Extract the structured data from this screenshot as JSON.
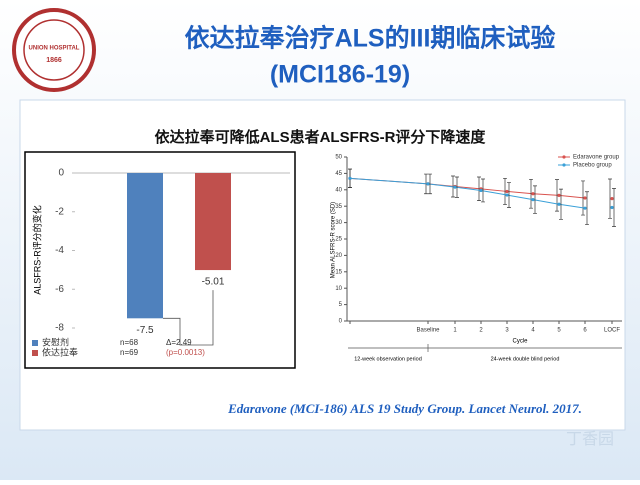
{
  "header": {
    "title": "依达拉奉治疗ALS的III期临床试验",
    "subtitle": "(MCI186-19)",
    "logo_text": "UNION HOSPITAL",
    "logo_year": "1866"
  },
  "panel_title": "依达拉奉可降低ALS患者ALSFRS-R评分下降速度",
  "citation": "Edaravone (MCI-186) ALS 19 Study Group. Lancet Neurol. 2017.",
  "watermark": "丁香园",
  "chart_data": [
    {
      "type": "bar",
      "y_label": "ALSFRS-R评分的变化",
      "categories": [
        "安慰剂",
        "依达拉奉"
      ],
      "values": [
        -7.5,
        -5.01
      ],
      "colors": [
        "#4f81bd",
        "#c0504d"
      ],
      "sample_sizes": [
        "n=68",
        "n=69"
      ],
      "annotations": [
        "Δ=2.49",
        "(p=0.0013)"
      ],
      "ylim": [
        -8,
        0
      ],
      "yticks": [
        0,
        -2,
        -4,
        -6,
        -8
      ],
      "legend": "bottom-left"
    },
    {
      "type": "line",
      "y_label": "Mean ALSFRS-R score (SD)",
      "x_label": "Cycle",
      "categories": [
        null,
        "Baseline",
        "1",
        "2",
        "3",
        "4",
        "5",
        "6",
        "LOCF"
      ],
      "series": [
        {
          "name": "Edaravone group",
          "color": "#d9534f",
          "values": [
            43.5,
            41.8,
            41.0,
            40.3,
            39.5,
            38.8,
            38.3,
            37.5,
            37.3
          ],
          "errors": [
            2.8,
            3.0,
            3.2,
            3.6,
            4.0,
            4.4,
            4.8,
            5.2,
            6.0
          ]
        },
        {
          "name": "Placebo group",
          "color": "#3aa0d8",
          "values": [
            43.5,
            41.8,
            40.8,
            39.8,
            38.4,
            37.0,
            35.6,
            34.4,
            34.6
          ],
          "errors": [
            2.8,
            3.0,
            3.1,
            3.5,
            3.8,
            4.2,
            4.6,
            5.0,
            5.8
          ]
        }
      ],
      "periods": [
        "12-week observation period",
        "24-week double blind period"
      ],
      "ylim": [
        0,
        50
      ],
      "yticks": [
        0,
        5,
        10,
        15,
        20,
        25,
        30,
        35,
        40,
        45,
        50
      ],
      "legend": "top-right"
    }
  ]
}
